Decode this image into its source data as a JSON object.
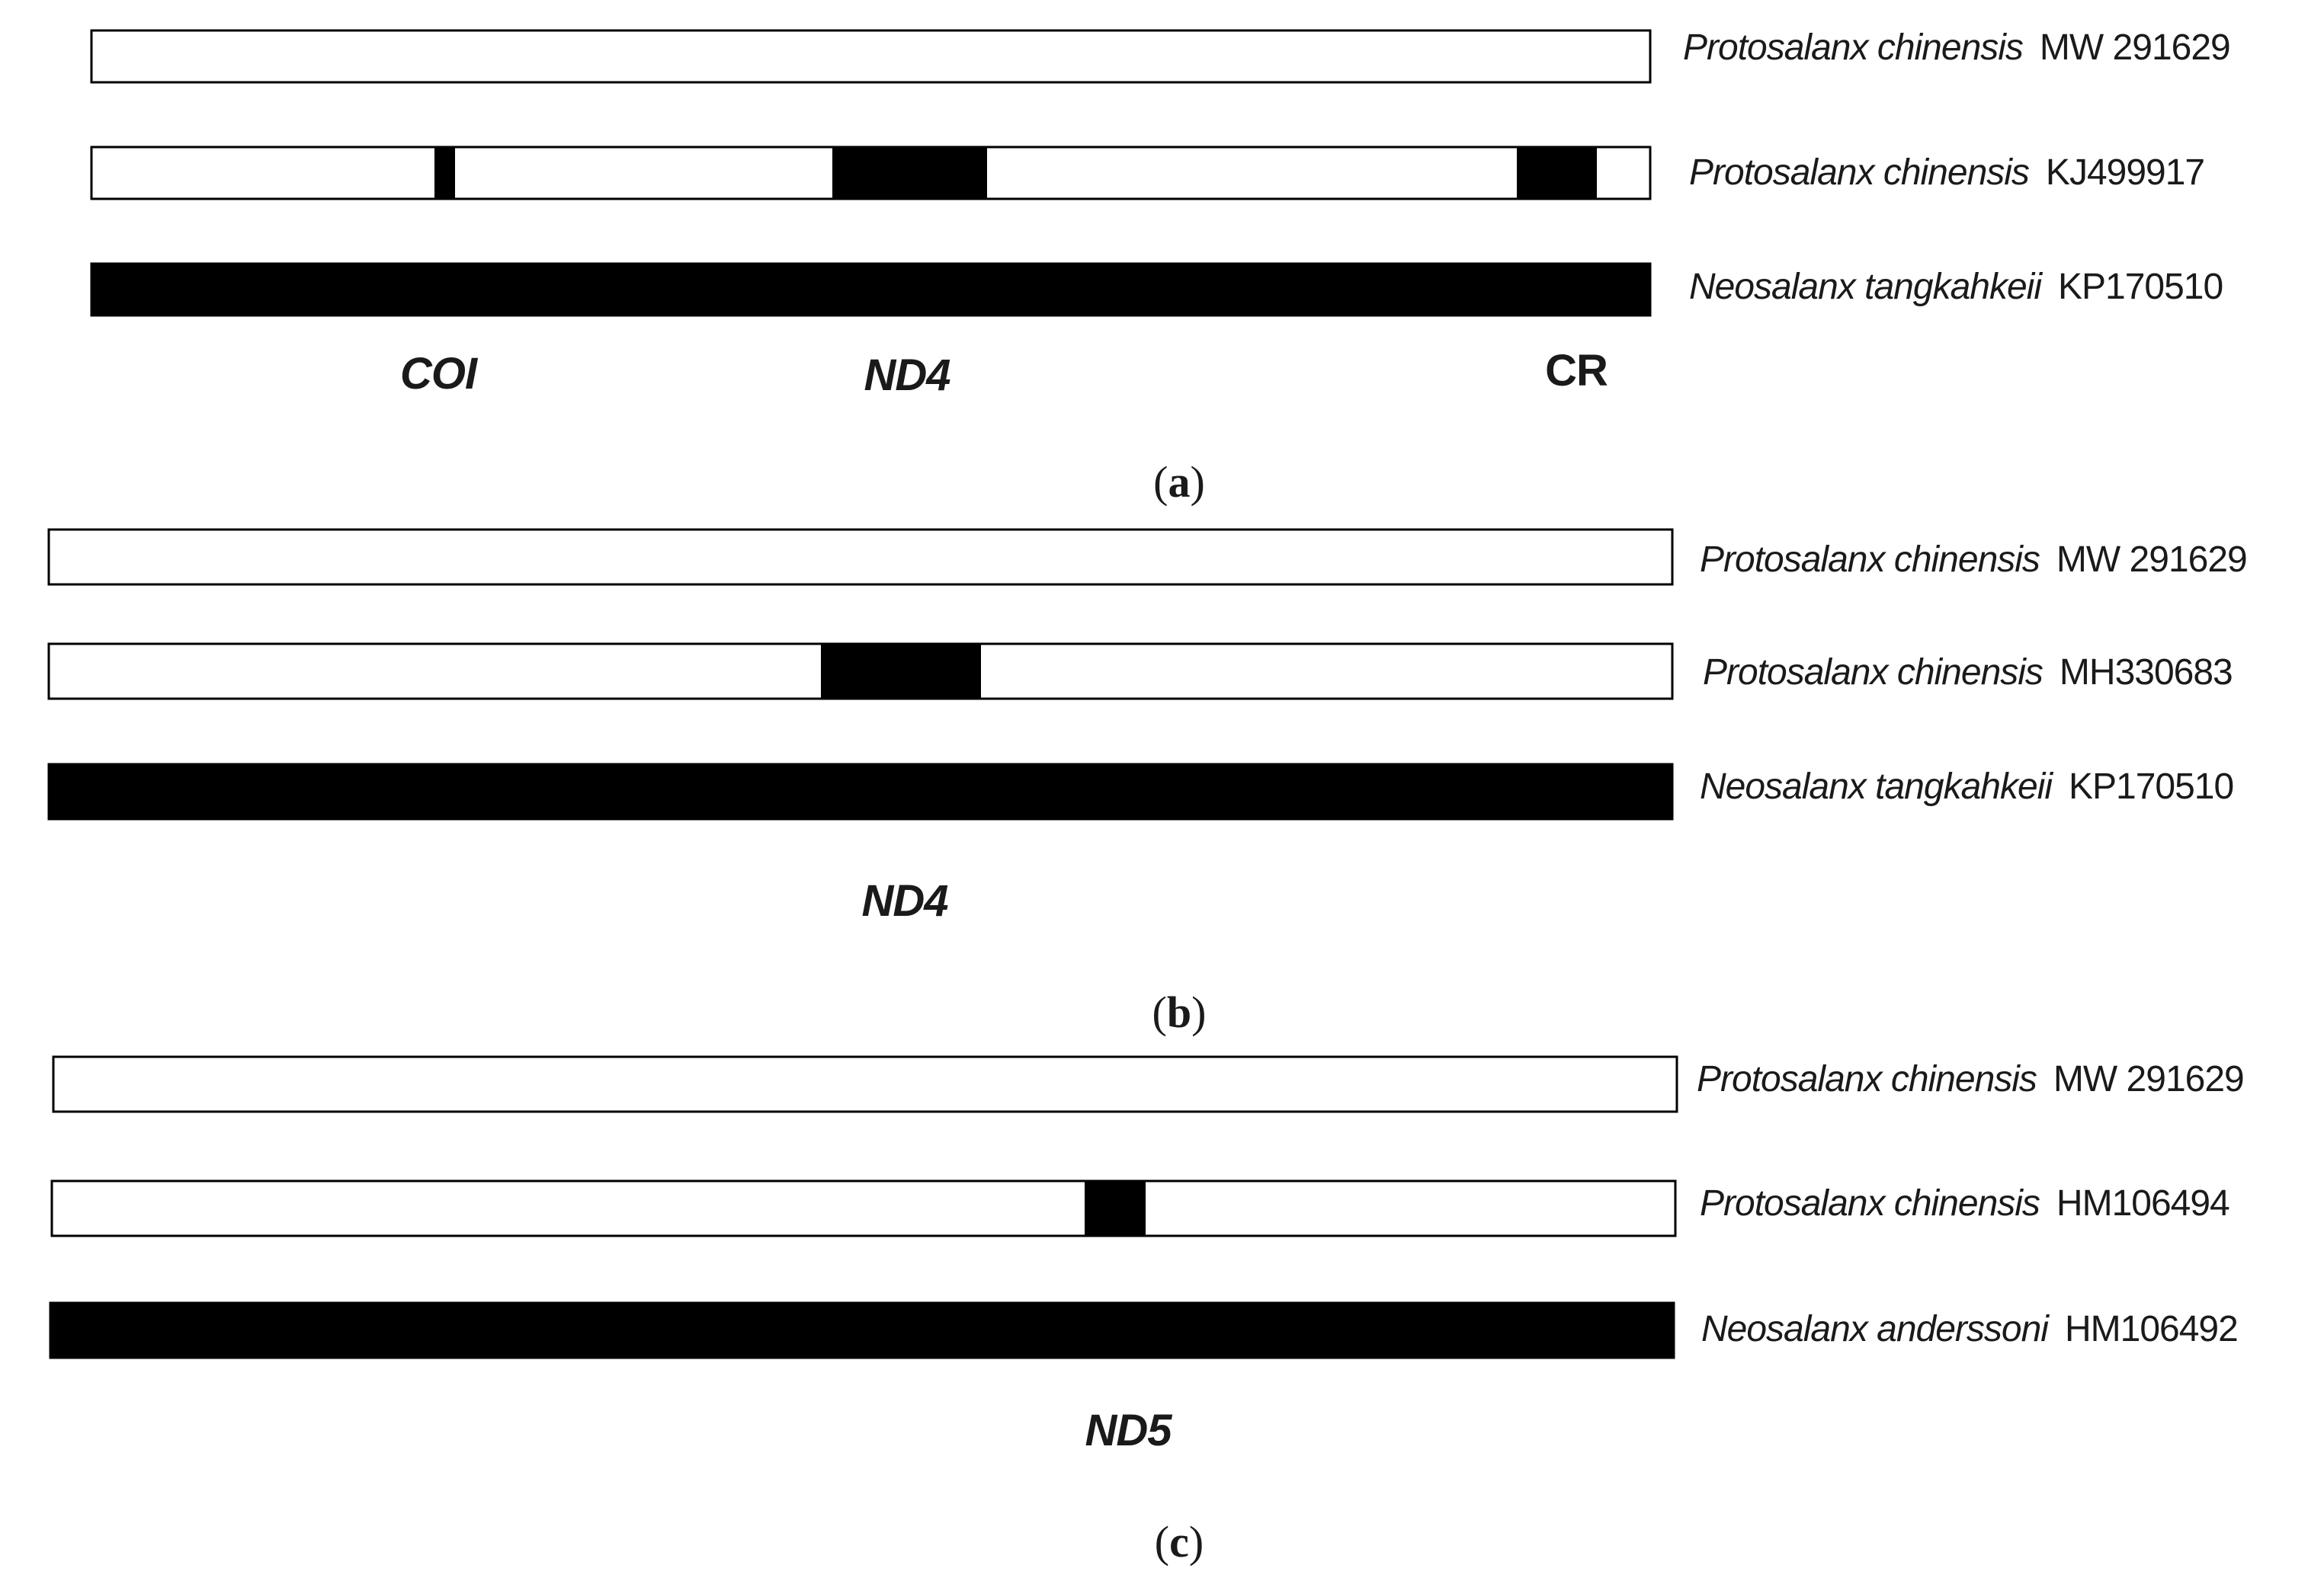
{
  "figure": {
    "colors": {
      "background": "#ffffff",
      "region_fill": "#000000",
      "bar_outline": "#000000",
      "text": "#1a1a1a"
    },
    "panels": [
      {
        "id": "a",
        "label_open": "(",
        "label_letter": "a",
        "label_close": ")",
        "sequences": [
          {
            "species": "Protosalanx chinensis",
            "accession": "MW 291629",
            "full_fill": false,
            "diff_regions": []
          },
          {
            "species": "Protosalanx chinensis",
            "accession": "KJ499917",
            "full_fill": false,
            "diff_regions": [
              {
                "gene": "COI"
              },
              {
                "gene": "ND4"
              },
              {
                "gene": "CR"
              }
            ]
          },
          {
            "species": "Neosalanx tangkahkeii",
            "accession": "KP170510",
            "full_fill": true,
            "diff_regions": []
          }
        ],
        "gene_labels": [
          {
            "text": "COI",
            "italic": true
          },
          {
            "text": "ND4",
            "italic": true
          },
          {
            "text": "CR",
            "italic": false
          }
        ]
      },
      {
        "id": "b",
        "label_open": "(",
        "label_letter": "b",
        "label_close": ")",
        "sequences": [
          {
            "species": "Protosalanx chinensis",
            "accession": "MW 291629",
            "full_fill": false,
            "diff_regions": []
          },
          {
            "species": "Protosalanx chinensis",
            "accession": "MH330683",
            "full_fill": false,
            "diff_regions": [
              {
                "gene": "ND4"
              }
            ]
          },
          {
            "species": "Neosalanx tangkahkeii",
            "accession": "KP170510",
            "full_fill": true,
            "diff_regions": []
          }
        ],
        "gene_labels": [
          {
            "text": "ND4",
            "italic": true
          }
        ]
      },
      {
        "id": "c",
        "label_open": "(",
        "label_letter": "c",
        "label_close": ")",
        "sequences": [
          {
            "species": "Protosalanx chinensis",
            "accession": "MW 291629",
            "full_fill": false,
            "diff_regions": []
          },
          {
            "species": "Protosalanx chinensis",
            "accession": "HM106494",
            "full_fill": false,
            "diff_regions": [
              {
                "gene": "ND5"
              }
            ]
          },
          {
            "species": "Neosalanx anderssoni",
            "accession": "HM106492",
            "full_fill": true,
            "diff_regions": []
          }
        ],
        "gene_labels": [
          {
            "text": "ND5",
            "italic": true
          }
        ]
      }
    ]
  }
}
